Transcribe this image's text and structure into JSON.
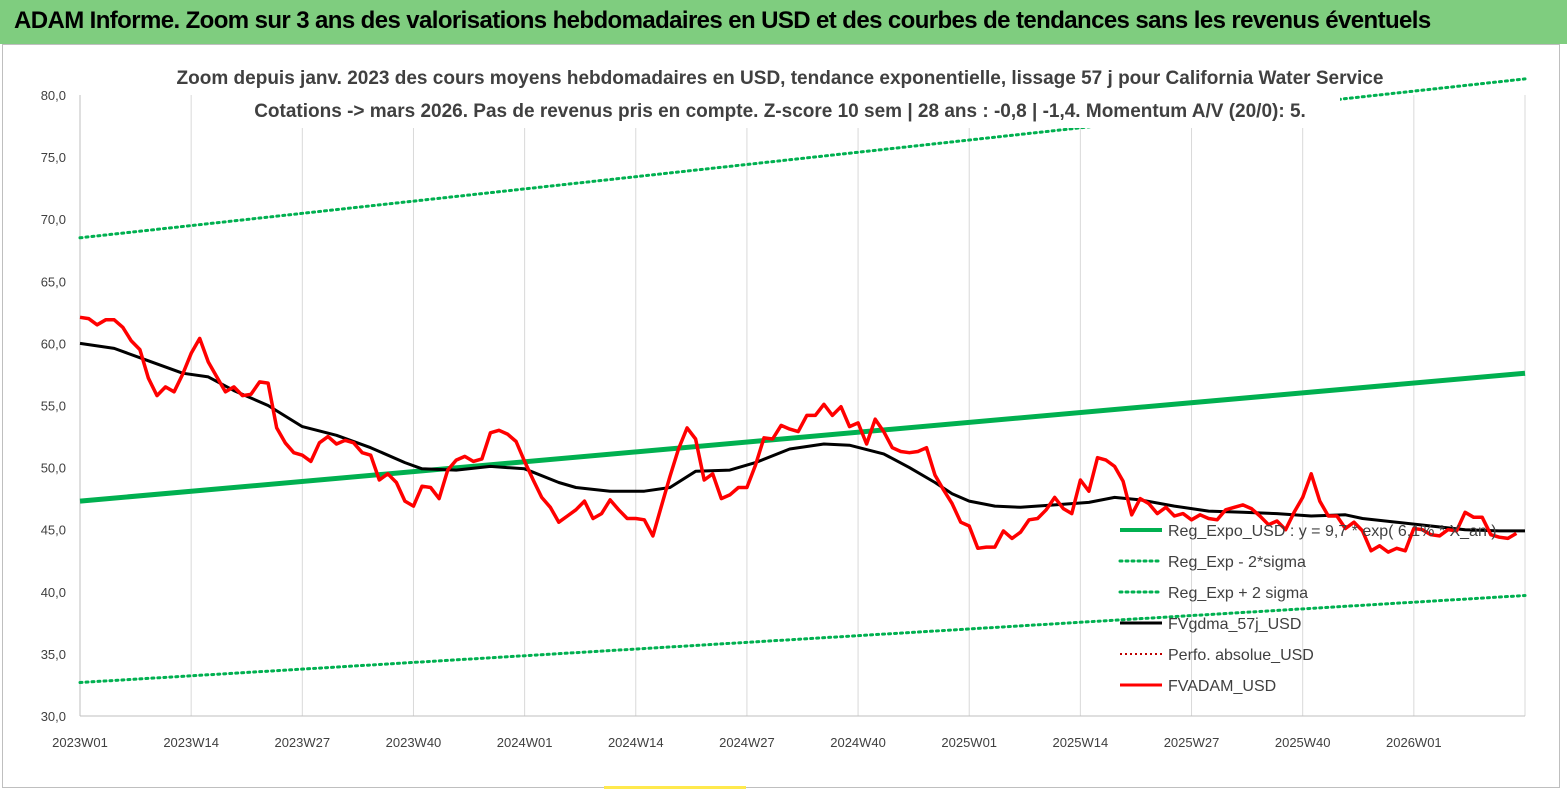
{
  "banner": {
    "title": "ADAM Informe. Zoom sur 3 ans des valorisations hebdomadaires en USD et des courbes de tendances sans les revenus éventuels"
  },
  "colors": {
    "banner_bg": "#7fcd7f",
    "trend": "#00b050",
    "band": "#00b050",
    "smooth": "#000000",
    "price": "#ff0000",
    "perfo": "#c00000"
  },
  "chart_data": {
    "type": "line",
    "title": "Zoom depuis janv. 2023 des cours moyens hebdomadaires en USD, tendance exponentielle, lissage 57 j pour California Water Service",
    "subtitle": "Cotations -> mars 2026. Pas de revenus pris en compte. Z-score 10 sem  | 28 ans : -0,8 | -1,4. Momentum A/V (20/0): 5.",
    "xlabel": "",
    "ylabel": "",
    "ylim": [
      30,
      80
    ],
    "yticks": [
      "30,0",
      "35,0",
      "40,0",
      "45,0",
      "50,0",
      "55,0",
      "60,0",
      "65,0",
      "70,0",
      "75,0",
      "80,0"
    ],
    "x_range": [
      0,
      169
    ],
    "xticks": [
      {
        "x": 0,
        "label": "2023W01"
      },
      {
        "x": 13,
        "label": "2023W14"
      },
      {
        "x": 26,
        "label": "2023W27"
      },
      {
        "x": 39,
        "label": "2023W40"
      },
      {
        "x": 52,
        "label": "2024W01"
      },
      {
        "x": 65,
        "label": "2024W14"
      },
      {
        "x": 78,
        "label": "2024W27"
      },
      {
        "x": 91,
        "label": "2024W40"
      },
      {
        "x": 104,
        "label": "2025W01"
      },
      {
        "x": 117,
        "label": "2025W14"
      },
      {
        "x": 130,
        "label": "2025W27"
      },
      {
        "x": 143,
        "label": "2025W40"
      },
      {
        "x": 156,
        "label": "2026W01"
      }
    ],
    "grid": "vertical",
    "legend_position": "bottom-right",
    "series": [
      {
        "name": "Reg_Expo_USD : y = 9,7 * exp( 6,1% * X_an )",
        "style": "solid-thick",
        "color": "#00b050",
        "points": [
          [
            0,
            47.3
          ],
          [
            169,
            57.6
          ]
        ]
      },
      {
        "name": "Reg_Exp - 2*sigma",
        "style": "dotted",
        "color": "#00b050",
        "points": [
          [
            0,
            32.7
          ],
          [
            169,
            39.7
          ]
        ]
      },
      {
        "name": "Reg_Exp + 2 sigma",
        "style": "dotted",
        "color": "#00b050",
        "points": [
          [
            0,
            68.5
          ],
          [
            169,
            81.3
          ]
        ]
      },
      {
        "name": "FVgdma_57j_USD",
        "style": "solid",
        "color": "#000000",
        "points": [
          [
            0,
            60.0
          ],
          [
            4,
            59.6
          ],
          [
            8,
            58.6
          ],
          [
            12,
            57.6
          ],
          [
            15,
            57.3
          ],
          [
            18,
            56.2
          ],
          [
            22,
            55.0
          ],
          [
            26,
            53.3
          ],
          [
            30,
            52.6
          ],
          [
            34,
            51.6
          ],
          [
            38,
            50.4
          ],
          [
            40,
            49.9
          ],
          [
            44,
            49.8
          ],
          [
            48,
            50.1
          ],
          [
            52,
            49.9
          ],
          [
            56,
            48.8
          ],
          [
            58,
            48.4
          ],
          [
            62,
            48.1
          ],
          [
            66,
            48.1
          ],
          [
            69,
            48.4
          ],
          [
            72,
            49.7
          ],
          [
            76,
            49.8
          ],
          [
            79,
            50.4
          ],
          [
            83,
            51.5
          ],
          [
            87,
            51.9
          ],
          [
            90,
            51.8
          ],
          [
            94,
            51.1
          ],
          [
            97,
            50.0
          ],
          [
            100,
            48.8
          ],
          [
            102,
            47.9
          ],
          [
            104,
            47.3
          ],
          [
            107,
            46.9
          ],
          [
            110,
            46.8
          ],
          [
            114,
            47.0
          ],
          [
            118,
            47.2
          ],
          [
            121,
            47.6
          ],
          [
            124,
            47.4
          ],
          [
            128,
            46.9
          ],
          [
            132,
            46.5
          ],
          [
            136,
            46.4
          ],
          [
            140,
            46.3
          ],
          [
            144,
            46.1
          ],
          [
            148,
            46.2
          ],
          [
            150,
            45.9
          ],
          [
            154,
            45.6
          ],
          [
            158,
            45.3
          ],
          [
            162,
            45.0
          ],
          [
            166,
            44.9
          ],
          [
            169,
            44.9
          ]
        ]
      },
      {
        "name": "Perfo. absolue_USD",
        "style": "dotted-thin",
        "color": "#c00000",
        "points": []
      },
      {
        "name": "FVADAM_USD",
        "style": "solid-thick",
        "color": "#ff0000",
        "points": [
          [
            0,
            62.1
          ],
          [
            1,
            62.0
          ],
          [
            2,
            61.5
          ],
          [
            3,
            61.9
          ],
          [
            4,
            61.9
          ],
          [
            5,
            61.3
          ],
          [
            6,
            60.2
          ],
          [
            7,
            59.5
          ],
          [
            8,
            57.2
          ],
          [
            9,
            55.8
          ],
          [
            10,
            56.5
          ],
          [
            11,
            56.1
          ],
          [
            12,
            57.5
          ],
          [
            13,
            59.2
          ],
          [
            14,
            60.4
          ],
          [
            15,
            58.5
          ],
          [
            16,
            57.3
          ],
          [
            17,
            56.1
          ],
          [
            18,
            56.5
          ],
          [
            19,
            55.8
          ],
          [
            20,
            55.9
          ],
          [
            21,
            56.9
          ],
          [
            22,
            56.8
          ],
          [
            23,
            53.2
          ],
          [
            24,
            52.0
          ],
          [
            25,
            51.2
          ],
          [
            26,
            51.0
          ],
          [
            27,
            50.5
          ],
          [
            28,
            52.0
          ],
          [
            29,
            52.5
          ],
          [
            30,
            51.9
          ],
          [
            31,
            52.2
          ],
          [
            32,
            52.0
          ],
          [
            33,
            51.2
          ],
          [
            34,
            51.0
          ],
          [
            35,
            49.0
          ],
          [
            36,
            49.5
          ],
          [
            37,
            48.8
          ],
          [
            38,
            47.3
          ],
          [
            39,
            46.9
          ],
          [
            40,
            48.5
          ],
          [
            41,
            48.4
          ],
          [
            42,
            47.5
          ],
          [
            43,
            49.8
          ],
          [
            44,
            50.6
          ],
          [
            45,
            50.9
          ],
          [
            46,
            50.5
          ],
          [
            47,
            50.7
          ],
          [
            48,
            52.8
          ],
          [
            49,
            53.0
          ],
          [
            50,
            52.7
          ],
          [
            51,
            52.1
          ],
          [
            52,
            50.5
          ],
          [
            53,
            49.0
          ],
          [
            54,
            47.6
          ],
          [
            55,
            46.8
          ],
          [
            56,
            45.6
          ],
          [
            57,
            46.1
          ],
          [
            58,
            46.6
          ],
          [
            59,
            47.3
          ],
          [
            60,
            45.9
          ],
          [
            61,
            46.3
          ],
          [
            62,
            47.4
          ],
          [
            63,
            46.6
          ],
          [
            64,
            45.9
          ],
          [
            65,
            45.9
          ],
          [
            66,
            45.8
          ],
          [
            67,
            44.5
          ],
          [
            68,
            46.9
          ],
          [
            69,
            49.3
          ],
          [
            70,
            51.5
          ],
          [
            71,
            53.2
          ],
          [
            72,
            52.3
          ],
          [
            73,
            49.0
          ],
          [
            74,
            49.5
          ],
          [
            75,
            47.5
          ],
          [
            76,
            47.8
          ],
          [
            77,
            48.4
          ],
          [
            78,
            48.4
          ],
          [
            79,
            50.2
          ],
          [
            80,
            52.4
          ],
          [
            81,
            52.3
          ],
          [
            82,
            53.4
          ],
          [
            83,
            53.1
          ],
          [
            84,
            52.9
          ],
          [
            85,
            54.2
          ],
          [
            86,
            54.2
          ],
          [
            87,
            55.1
          ],
          [
            88,
            54.2
          ],
          [
            89,
            54.9
          ],
          [
            90,
            53.3
          ],
          [
            91,
            53.6
          ],
          [
            92,
            51.9
          ],
          [
            93,
            53.9
          ],
          [
            94,
            52.9
          ],
          [
            95,
            51.6
          ],
          [
            96,
            51.3
          ],
          [
            97,
            51.2
          ],
          [
            98,
            51.3
          ],
          [
            99,
            51.6
          ],
          [
            100,
            49.4
          ],
          [
            101,
            48.2
          ],
          [
            102,
            47.1
          ],
          [
            103,
            45.6
          ],
          [
            104,
            45.3
          ],
          [
            105,
            43.5
          ],
          [
            106,
            43.6
          ],
          [
            107,
            43.6
          ],
          [
            108,
            44.9
          ],
          [
            109,
            44.3
          ],
          [
            110,
            44.8
          ],
          [
            111,
            45.8
          ],
          [
            112,
            45.9
          ],
          [
            113,
            46.6
          ],
          [
            114,
            47.6
          ],
          [
            115,
            46.7
          ],
          [
            116,
            46.3
          ],
          [
            117,
            49.0
          ],
          [
            118,
            48.1
          ],
          [
            119,
            50.8
          ],
          [
            120,
            50.6
          ],
          [
            121,
            50.1
          ],
          [
            122,
            48.9
          ],
          [
            123,
            46.2
          ],
          [
            124,
            47.5
          ],
          [
            125,
            47.1
          ],
          [
            126,
            46.3
          ],
          [
            127,
            46.8
          ],
          [
            128,
            46.1
          ],
          [
            129,
            46.3
          ],
          [
            130,
            45.8
          ],
          [
            131,
            46.2
          ],
          [
            132,
            45.9
          ],
          [
            133,
            45.8
          ],
          [
            134,
            46.6
          ],
          [
            135,
            46.8
          ],
          [
            136,
            47.0
          ],
          [
            137,
            46.7
          ],
          [
            138,
            46.1
          ],
          [
            139,
            45.4
          ],
          [
            140,
            45.7
          ],
          [
            141,
            45.0
          ],
          [
            142,
            46.4
          ],
          [
            143,
            47.6
          ],
          [
            144,
            49.5
          ],
          [
            145,
            47.3
          ],
          [
            146,
            46.1
          ],
          [
            147,
            46.1
          ],
          [
            148,
            45.1
          ],
          [
            149,
            45.6
          ],
          [
            150,
            44.9
          ],
          [
            151,
            43.3
          ],
          [
            152,
            43.7
          ],
          [
            153,
            43.2
          ],
          [
            154,
            43.5
          ],
          [
            155,
            43.3
          ],
          [
            156,
            45.1
          ],
          [
            157,
            45.0
          ],
          [
            158,
            44.6
          ],
          [
            159,
            44.5
          ],
          [
            160,
            45.0
          ],
          [
            161,
            44.9
          ],
          [
            162,
            46.4
          ],
          [
            163,
            46.0
          ],
          [
            164,
            46.0
          ],
          [
            165,
            44.6
          ],
          [
            166,
            44.4
          ],
          [
            167,
            44.3
          ],
          [
            168,
            44.7
          ]
        ]
      }
    ]
  }
}
